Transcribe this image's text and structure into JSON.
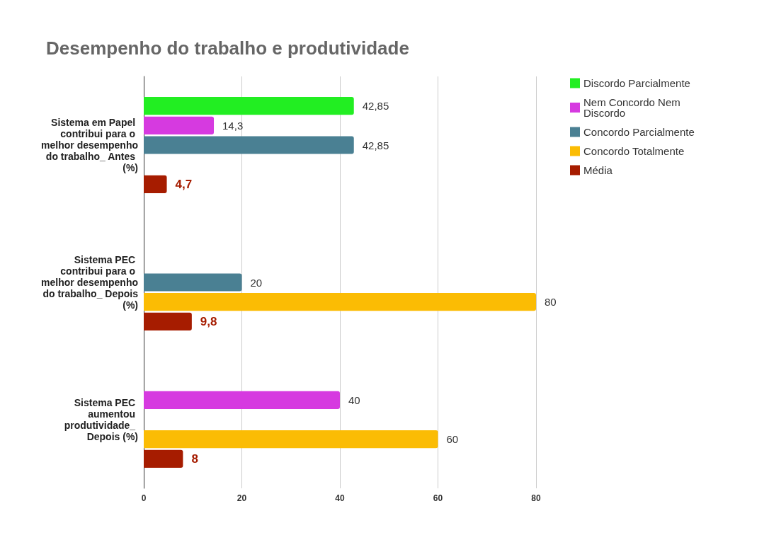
{
  "chart_data": {
    "type": "bar",
    "orientation": "horizontal",
    "title": "Desempenho do trabalho e produtividade",
    "categories": [
      "Sistema em Papel contribui para o melhor desempenho do trabalho_ Antes (%)",
      "Sistema PEC contribui para o melhor desempenho do trabalho_ Depois (%)",
      "Sistema PEC aumentou produtividade_ Depois (%)"
    ],
    "series": [
      {
        "name": "Discordo Parcialmente",
        "color": "#22ee22",
        "values": [
          42.85,
          null,
          null
        ],
        "value_labels": [
          "42,85",
          null,
          null
        ]
      },
      {
        "name": "Nem Concordo Nem Discordo",
        "color": "#d63ae0",
        "values": [
          14.3,
          null,
          40
        ],
        "value_labels": [
          "14,3",
          null,
          "40"
        ]
      },
      {
        "name": "Concordo Parcialmente",
        "color": "#4a8093",
        "values": [
          42.85,
          20,
          null
        ],
        "value_labels": [
          "42,85",
          "20",
          null
        ]
      },
      {
        "name": "Concordo Totalmente",
        "color": "#fbbc04",
        "values": [
          null,
          80,
          60
        ],
        "value_labels": [
          null,
          "80",
          "60"
        ]
      },
      {
        "name": "Média",
        "color": "#a61c00",
        "values": [
          4.7,
          9.8,
          8
        ],
        "value_labels": [
          "4,7",
          "9,8",
          "8"
        ]
      }
    ],
    "xlim": [
      0,
      80
    ],
    "xticks": [
      0,
      20,
      40,
      60,
      80
    ],
    "grid": "x",
    "legend": "right"
  }
}
